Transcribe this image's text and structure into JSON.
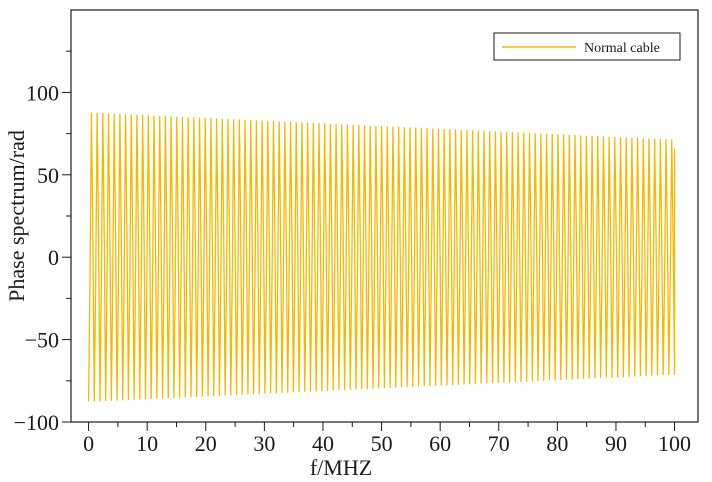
{
  "chart_data": {
    "type": "line",
    "title": "",
    "xlabel": "f/MHZ",
    "ylabel": "Phase spectrum/rad",
    "xlim": [
      -3,
      104
    ],
    "ylim": [
      -100,
      150
    ],
    "xticks": [
      0,
      10,
      20,
      30,
      40,
      50,
      60,
      70,
      80,
      90,
      100
    ],
    "yticks": [
      -100,
      -50,
      0,
      50,
      100
    ],
    "xtick_labels": [
      "0",
      "10",
      "20",
      "30",
      "40",
      "50",
      "60",
      "70",
      "80",
      "90",
      "100"
    ],
    "ytick_labels": [
      "−100",
      "−50",
      "0",
      "50",
      "100"
    ],
    "grid": false,
    "legend_position": "top-right",
    "series": [
      {
        "name": "Normal cable",
        "color": "#f5b800",
        "x_range": [
          0,
          100
        ],
        "oscillation_cycles": 103,
        "upper_envelope": [
          [
            0,
            87.5
          ],
          [
            100,
            71
          ]
        ],
        "lower_envelope": [
          [
            0,
            -87.5
          ],
          [
            100,
            -71
          ]
        ],
        "end_value": 66
      }
    ]
  }
}
